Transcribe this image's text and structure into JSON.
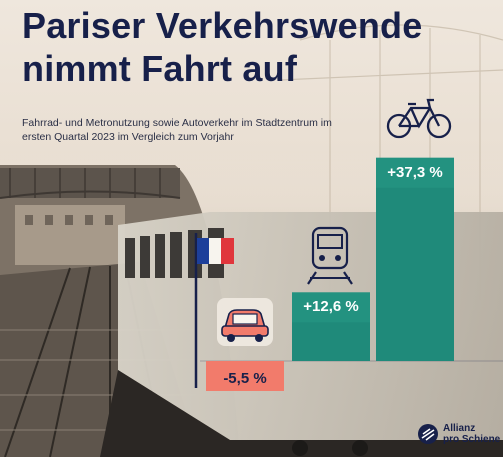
{
  "title_line1": "Pariser Verkehrswende",
  "title_line2": "nimmt Fahrt auf",
  "subtitle": "Fahrrad- und Metronutzung sowie Autoverkehr im Stadtzentrum im ersten Quartal 2023 im Vergleich zum Vorjahr",
  "logo": {
    "line1": "Allianz",
    "line2": "pro Schiene"
  },
  "colors": {
    "positive": "#1f8a7a",
    "negative": "#f27b6b",
    "navy": "#17204a"
  },
  "chart_data": {
    "type": "bar",
    "categories": [
      "Auto",
      "Metro",
      "Fahrrad"
    ],
    "icons": [
      "car-icon",
      "train-icon",
      "bicycle-icon"
    ],
    "values": [
      -5.5,
      12.6,
      37.3
    ],
    "labels": [
      "-5,5 %",
      "+12,6 %",
      "+37,3 %"
    ],
    "ylim": [
      -7,
      38
    ]
  }
}
